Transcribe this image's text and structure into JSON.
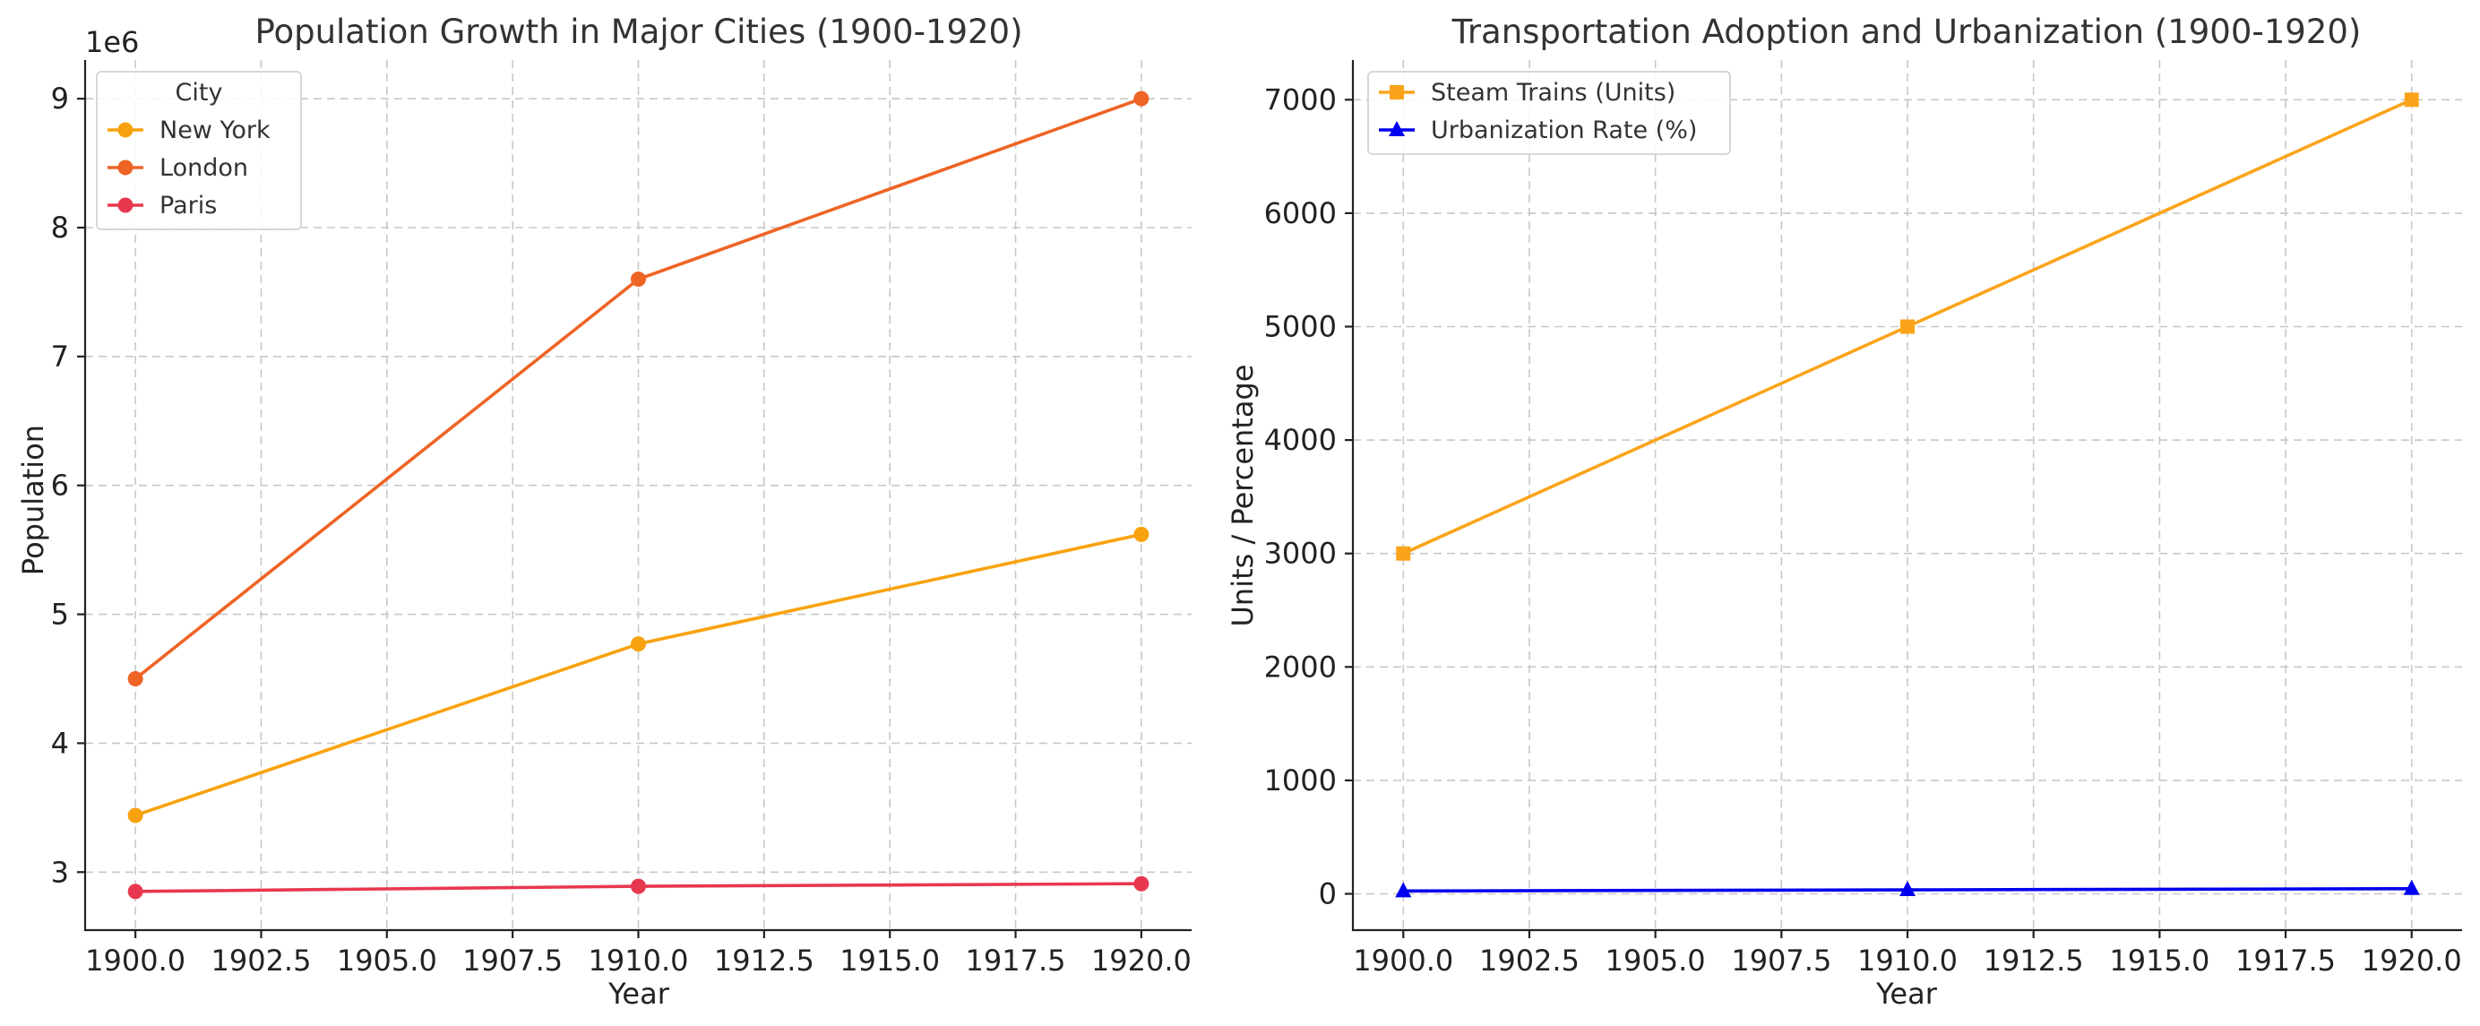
{
  "chart_data": [
    {
      "type": "line",
      "title": "Population Growth in Major Cities (1900-1920)",
      "xlabel": "Year",
      "ylabel": "Population",
      "y_offset_text": "1e6",
      "x": [
        1900,
        1910,
        1920
      ],
      "xlim": [
        1899,
        1921
      ],
      "ylim": [
        2.55,
        9.3
      ],
      "xticks": [
        1900.0,
        1902.5,
        1905.0,
        1907.5,
        1910.0,
        1912.5,
        1915.0,
        1917.5,
        1920.0
      ],
      "xtick_labels": [
        "1900.0",
        "1902.5",
        "1905.0",
        "1907.5",
        "1910.0",
        "1912.5",
        "1915.0",
        "1917.5",
        "1920.0"
      ],
      "yticks": [
        3,
        4,
        5,
        6,
        7,
        8,
        9
      ],
      "ytick_labels": [
        "3",
        "4",
        "5",
        "6",
        "7",
        "8",
        "9"
      ],
      "grid": true,
      "legend": {
        "title": "City",
        "placement": "top-left"
      },
      "series": [
        {
          "name": "New York",
          "values": [
            3.44,
            4.77,
            5.62
          ],
          "color": "#F9A20F",
          "marker": "circle"
        },
        {
          "name": "London",
          "values": [
            4.5,
            7.6,
            9.0
          ],
          "color": "#EE6425",
          "marker": "circle"
        },
        {
          "name": "Paris",
          "values": [
            2.85,
            2.89,
            2.91
          ],
          "color": "#E8384F",
          "marker": "circle"
        }
      ]
    },
    {
      "type": "line",
      "title": "Transportation Adoption and Urbanization (1900-1920)",
      "xlabel": "Year",
      "ylabel": "Units / Percentage",
      "x": [
        1900,
        1910,
        1920
      ],
      "xlim": [
        1899,
        1921
      ],
      "ylim": [
        -320,
        7350
      ],
      "xticks": [
        1900.0,
        1902.5,
        1905.0,
        1907.5,
        1910.0,
        1912.5,
        1915.0,
        1917.5,
        1920.0
      ],
      "xtick_labels": [
        "1900.0",
        "1902.5",
        "1905.0",
        "1907.5",
        "1910.0",
        "1912.5",
        "1915.0",
        "1917.5",
        "1920.0"
      ],
      "yticks": [
        0,
        1000,
        2000,
        3000,
        4000,
        5000,
        6000,
        7000
      ],
      "ytick_labels": [
        "0",
        "1000",
        "2000",
        "3000",
        "4000",
        "5000",
        "6000",
        "7000"
      ],
      "grid": true,
      "legend": {
        "placement": "top-left"
      },
      "series": [
        {
          "name": "Steam Trains (Units)",
          "values": [
            3000,
            5000,
            7000
          ],
          "color": "#FBA41A",
          "marker": "square"
        },
        {
          "name": "Urbanization Rate (%)",
          "values": [
            25,
            35,
            45
          ],
          "color": "#0000EE",
          "marker": "triangle"
        }
      ]
    }
  ]
}
